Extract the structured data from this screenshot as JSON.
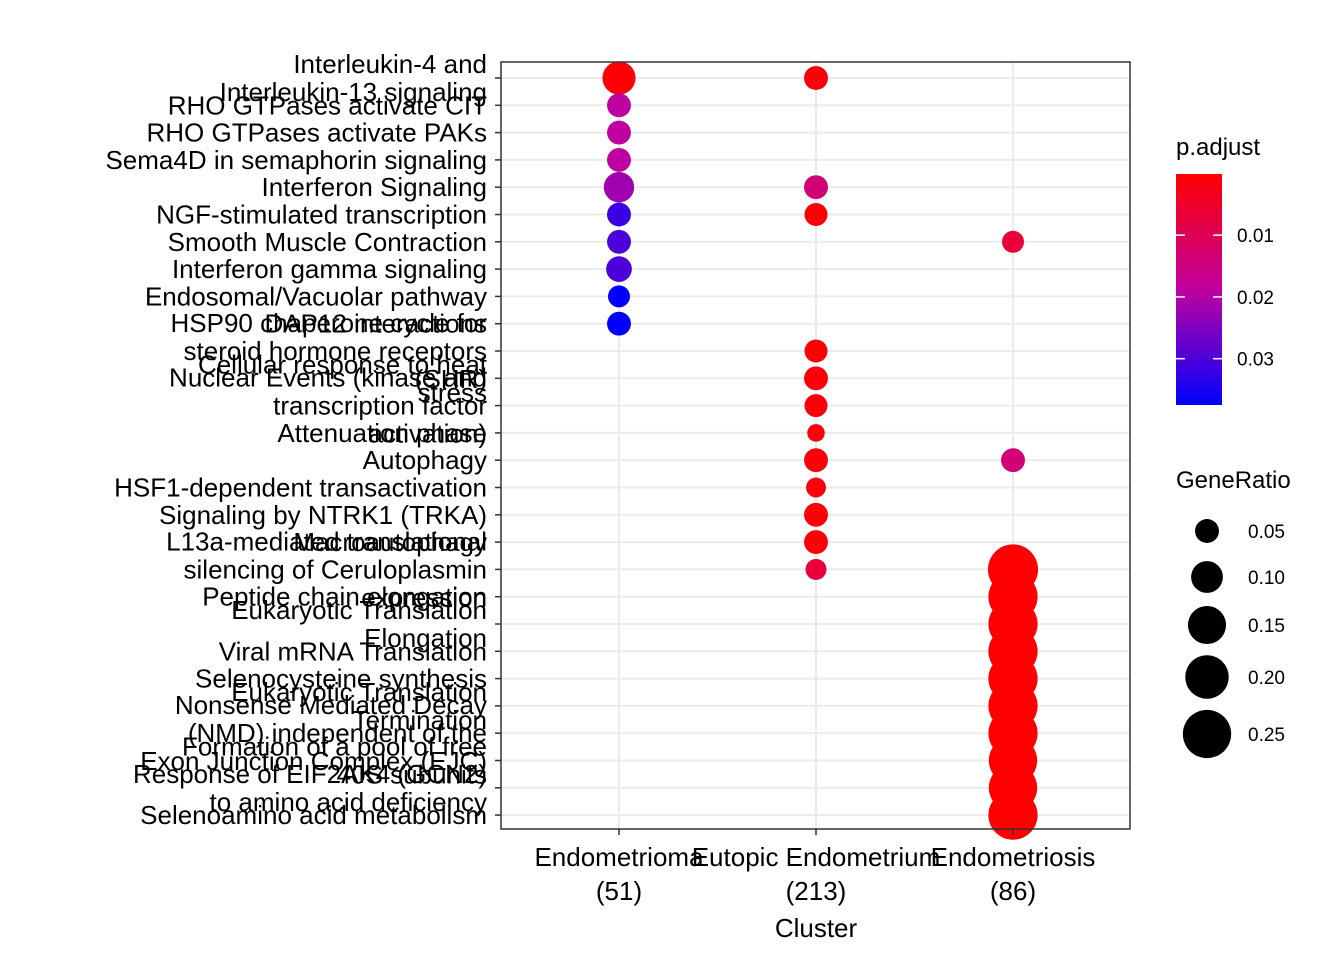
{
  "chart_data": {
    "type": "scatter",
    "xlabel": "Cluster",
    "ylabel": "",
    "categories": [
      {
        "name": "Endometrioma",
        "count": "(51)"
      },
      {
        "name": "Eutopic Endometrium",
        "count": "(213)"
      },
      {
        "name": "Endometriosis",
        "count": "(86)"
      }
    ],
    "pathways": [
      [
        "Interleukin-4 and",
        "Interleukin-13 signaling"
      ],
      [
        "RHO GTPases activate CIT"
      ],
      [
        "RHO GTPases activate PAKs"
      ],
      [
        "Sema4D in semaphorin signaling"
      ],
      [
        "Interferon Signaling"
      ],
      [
        "NGF-stimulated transcription"
      ],
      [
        "Smooth Muscle Contraction"
      ],
      [
        "Interferon gamma signaling"
      ],
      [
        "Endosomal/Vacuolar pathway"
      ],
      [
        "DAP12 interactions"
      ],
      [
        "HSP90 chaperone cycle for",
        "steroid hormone receptors",
        "(SHR)"
      ],
      [
        "Cellular response to heat",
        "stress"
      ],
      [
        "Nuclear Events (kinase and",
        "transcription factor",
        "activation)"
      ],
      [
        "Attenuation phase"
      ],
      [
        "Autophagy"
      ],
      [
        "HSF1-dependent transactivation"
      ],
      [
        "Signaling by NTRK1 (TRKA)"
      ],
      [
        "Macroautophagy"
      ],
      [
        "L13a-mediated translational",
        "silencing of Ceruloplasmin",
        "expression"
      ],
      [
        "Peptide chain elongation"
      ],
      [
        "Eukaryotic Translation",
        "Elongation"
      ],
      [
        "Viral mRNA Translation"
      ],
      [
        "Selenocysteine synthesis"
      ],
      [
        "Eukaryotic Translation",
        "Termination"
      ],
      [
        "Nonsense Mediated Decay",
        "(NMD) independent of the",
        "Exon Junction Complex (EJC)"
      ],
      [
        "Formation of a pool of free",
        "40S subunits"
      ],
      [
        "Response of EIF2AK4 (GCN2)",
        "to amino acid deficiency"
      ],
      [
        "Selenoamino acid metabolism"
      ]
    ],
    "points": [
      {
        "cluster": 0,
        "pathway": 0,
        "gene_ratio": 0.11,
        "p_adjust": 0.0005
      },
      {
        "cluster": 0,
        "pathway": 1,
        "gene_ratio": 0.05,
        "p_adjust": 0.019
      },
      {
        "cluster": 0,
        "pathway": 2,
        "gene_ratio": 0.05,
        "p_adjust": 0.019
      },
      {
        "cluster": 0,
        "pathway": 3,
        "gene_ratio": 0.05,
        "p_adjust": 0.019
      },
      {
        "cluster": 0,
        "pathway": 4,
        "gene_ratio": 0.09,
        "p_adjust": 0.022
      },
      {
        "cluster": 0,
        "pathway": 5,
        "gene_ratio": 0.05,
        "p_adjust": 0.032
      },
      {
        "cluster": 0,
        "pathway": 6,
        "gene_ratio": 0.05,
        "p_adjust": 0.03
      },
      {
        "cluster": 0,
        "pathway": 7,
        "gene_ratio": 0.06,
        "p_adjust": 0.03
      },
      {
        "cluster": 0,
        "pathway": 8,
        "gene_ratio": 0.04,
        "p_adjust": 0.0375
      },
      {
        "cluster": 0,
        "pathway": 9,
        "gene_ratio": 0.05,
        "p_adjust": 0.0375
      },
      {
        "cluster": 1,
        "pathway": 0,
        "gene_ratio": 0.05,
        "p_adjust": 0.001
      },
      {
        "cluster": 1,
        "pathway": 4,
        "gene_ratio": 0.05,
        "p_adjust": 0.014
      },
      {
        "cluster": 1,
        "pathway": 5,
        "gene_ratio": 0.045,
        "p_adjust": 0.001
      },
      {
        "cluster": 1,
        "pathway": 10,
        "gene_ratio": 0.045,
        "p_adjust": 0.001
      },
      {
        "cluster": 1,
        "pathway": 11,
        "gene_ratio": 0.05,
        "p_adjust": 0.001
      },
      {
        "cluster": 1,
        "pathway": 12,
        "gene_ratio": 0.045,
        "p_adjust": 0.001
      },
      {
        "cluster": 1,
        "pathway": 13,
        "gene_ratio": 0.02,
        "p_adjust": 0.001
      },
      {
        "cluster": 1,
        "pathway": 14,
        "gene_ratio": 0.05,
        "p_adjust": 0.001
      },
      {
        "cluster": 1,
        "pathway": 15,
        "gene_ratio": 0.03,
        "p_adjust": 0.001
      },
      {
        "cluster": 1,
        "pathway": 16,
        "gene_ratio": 0.05,
        "p_adjust": 0.001
      },
      {
        "cluster": 1,
        "pathway": 17,
        "gene_ratio": 0.05,
        "p_adjust": 0.001
      },
      {
        "cluster": 1,
        "pathway": 18,
        "gene_ratio": 0.035,
        "p_adjust": 0.007
      },
      {
        "cluster": 2,
        "pathway": 6,
        "gene_ratio": 0.04,
        "p_adjust": 0.007
      },
      {
        "cluster": 2,
        "pathway": 14,
        "gene_ratio": 0.05,
        "p_adjust": 0.014
      },
      {
        "cluster": 2,
        "pathway": 18,
        "gene_ratio": 0.27,
        "p_adjust": 0.0001
      },
      {
        "cluster": 2,
        "pathway": 19,
        "gene_ratio": 0.26,
        "p_adjust": 0.0001
      },
      {
        "cluster": 2,
        "pathway": 20,
        "gene_ratio": 0.26,
        "p_adjust": 0.0001
      },
      {
        "cluster": 2,
        "pathway": 21,
        "gene_ratio": 0.26,
        "p_adjust": 0.0001
      },
      {
        "cluster": 2,
        "pathway": 22,
        "gene_ratio": 0.26,
        "p_adjust": 0.0001
      },
      {
        "cluster": 2,
        "pathway": 23,
        "gene_ratio": 0.26,
        "p_adjust": 0.0001
      },
      {
        "cluster": 2,
        "pathway": 24,
        "gene_ratio": 0.26,
        "p_adjust": 0.0001
      },
      {
        "cluster": 2,
        "pathway": 25,
        "gene_ratio": 0.25,
        "p_adjust": 0.0001
      },
      {
        "cluster": 2,
        "pathway": 26,
        "gene_ratio": 0.25,
        "p_adjust": 0.0001
      },
      {
        "cluster": 2,
        "pathway": 27,
        "gene_ratio": 0.26,
        "p_adjust": 0.0001
      }
    ],
    "color_legend": {
      "title": "p.adjust",
      "breaks": [
        0.01,
        0.02,
        0.03
      ],
      "labels": [
        "0.01",
        "0.02",
        "0.03"
      ],
      "range": [
        0.0001,
        0.0375
      ],
      "low_color": "#ff0000",
      "mid_color": "#c000a0",
      "high_color": "#0000ff",
      "position": "right"
    },
    "size_legend": {
      "title": "GeneRatio",
      "breaks": [
        0.05,
        0.1,
        0.15,
        0.2,
        0.25
      ],
      "labels": [
        "0.05",
        "0.10",
        "0.15",
        "0.20",
        "0.25"
      ],
      "position": "right"
    },
    "point_color": "#ff0000",
    "grid": true,
    "panel_border": true
  }
}
